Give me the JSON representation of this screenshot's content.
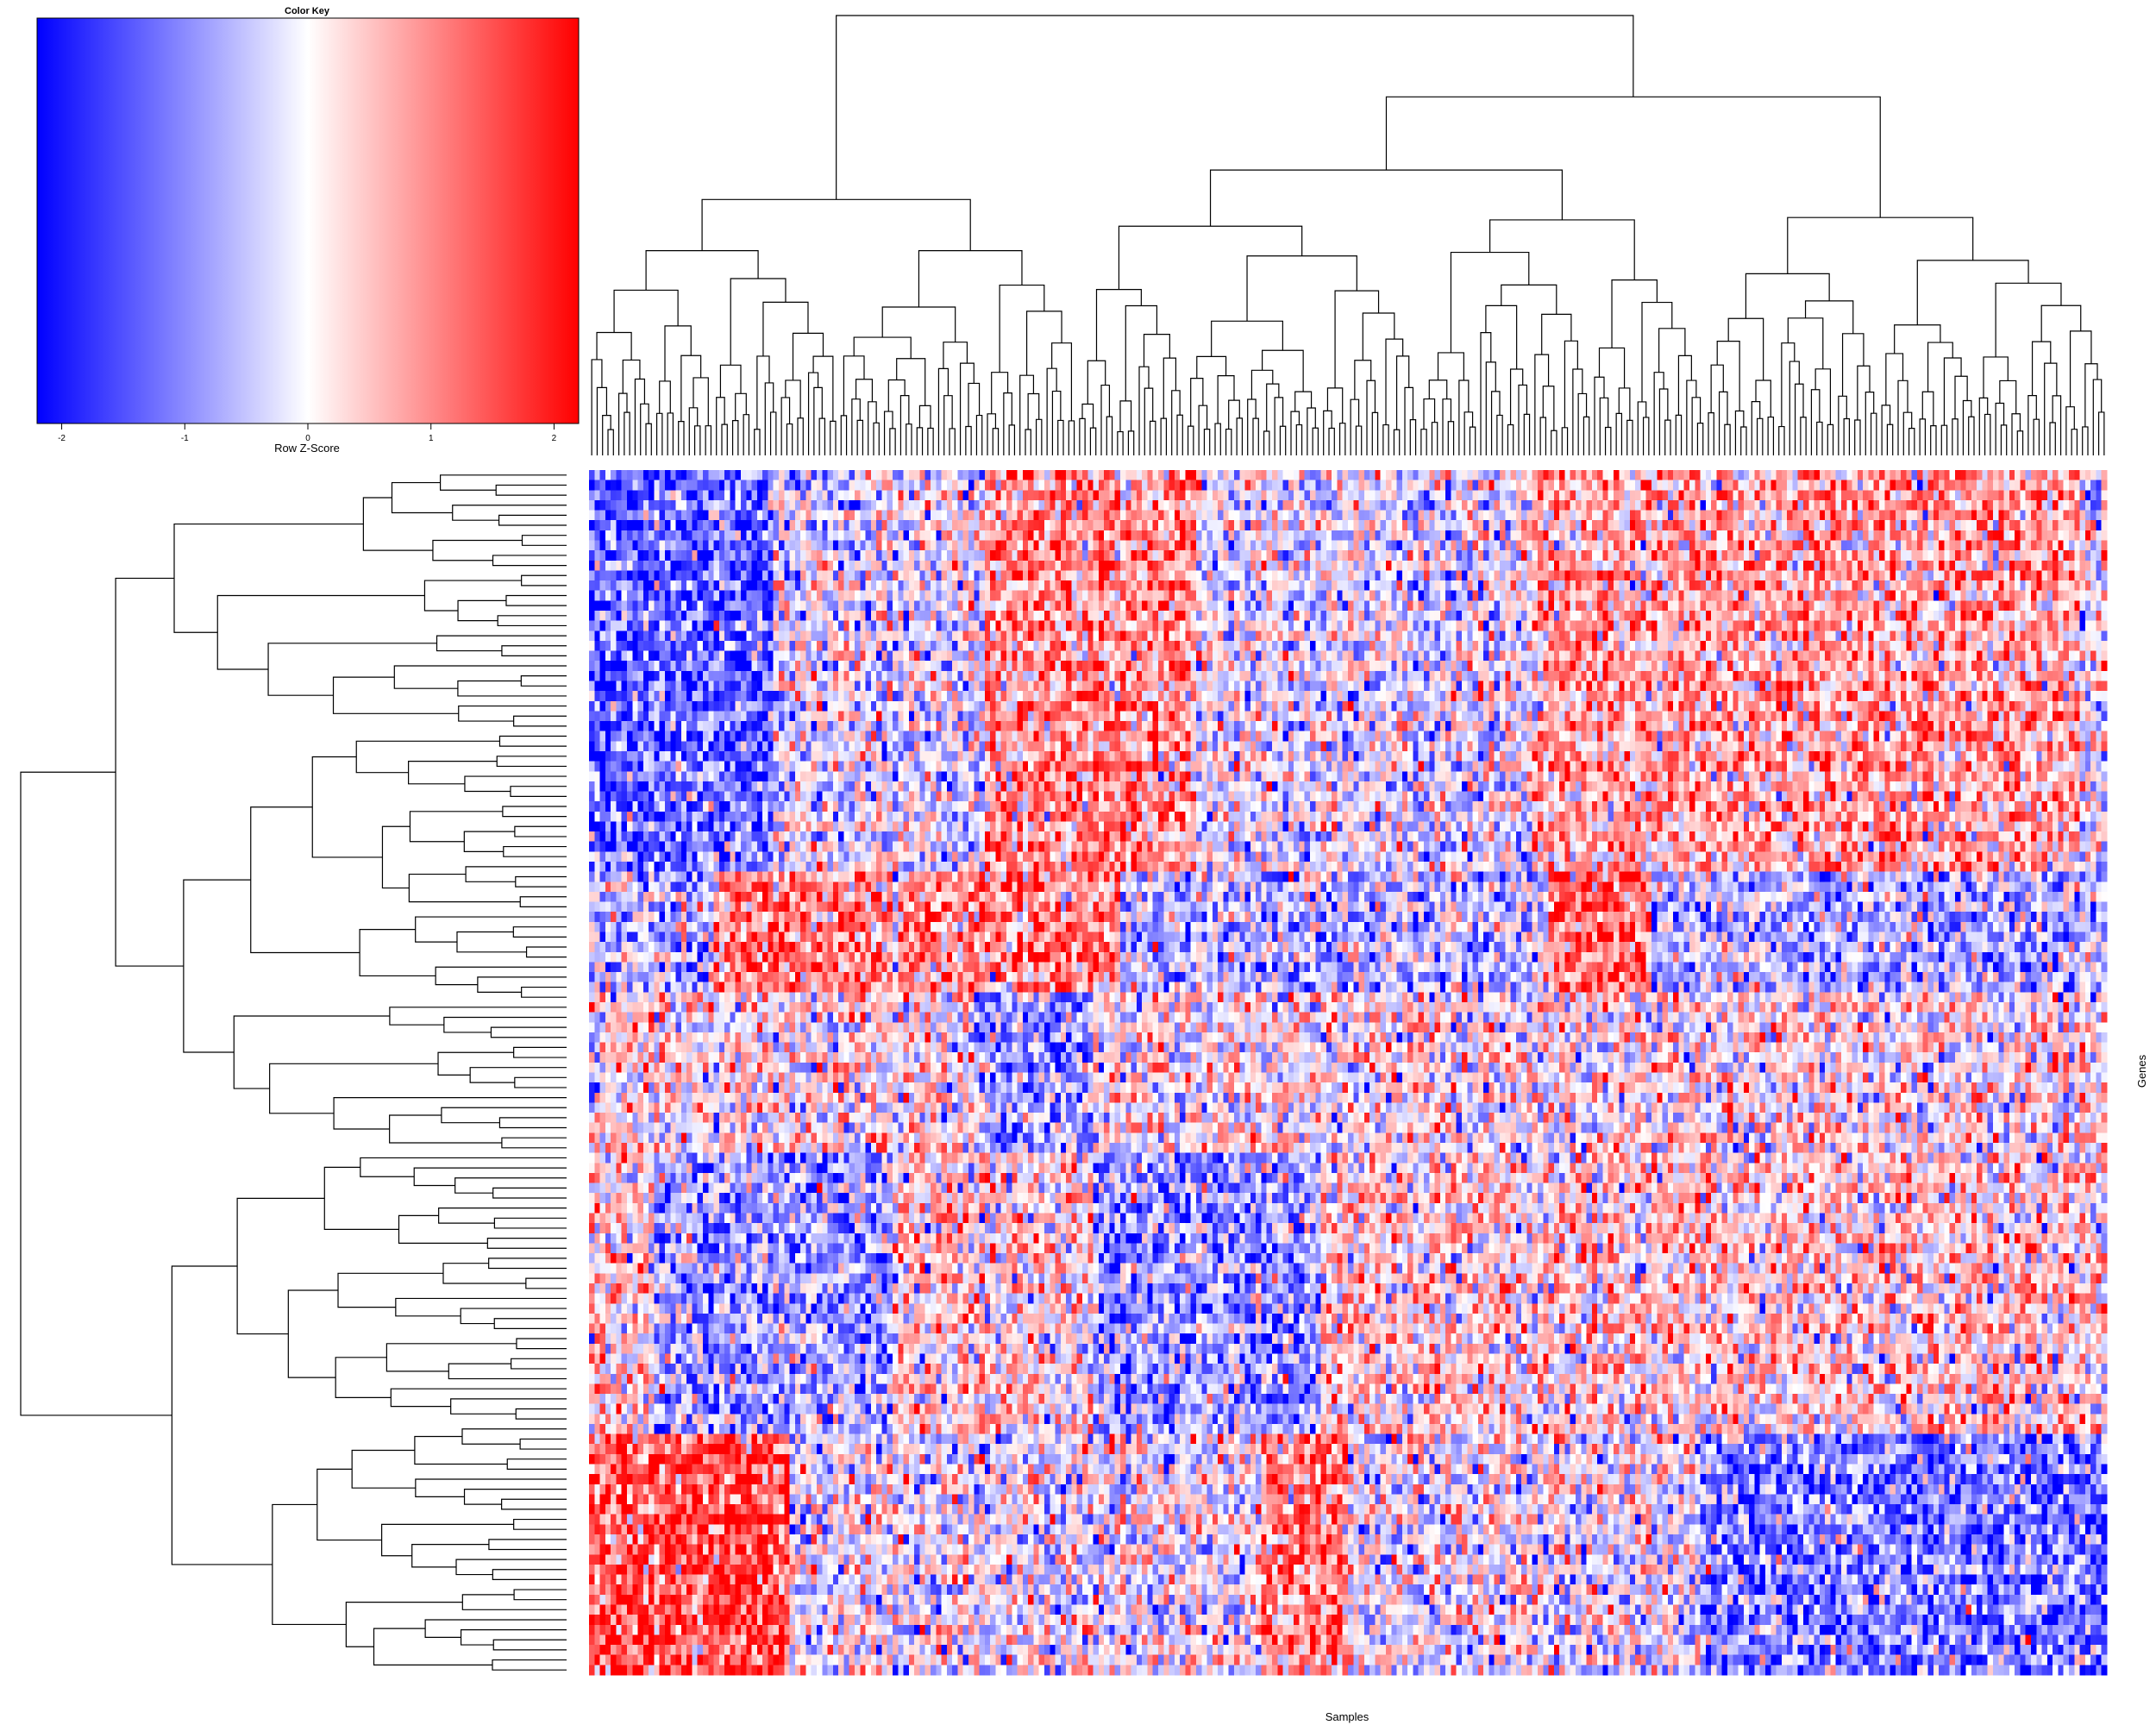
{
  "chart_data": {
    "type": "heatmap",
    "subtype": "clustered heatmap with row and column dendrograms",
    "xlabel": "Samples",
    "ylabel": "Genes",
    "color_key": {
      "title": "Color Key",
      "label": "Row Z-Score",
      "range": [
        -2.2,
        2.2
      ],
      "ticks": [
        "-2",
        "-1",
        "0",
        "1",
        "2"
      ],
      "tick_values": [
        -2,
        -1,
        0,
        1,
        2
      ]
    },
    "colors": {
      "low": "#0000ff",
      "mid": "#ffffff",
      "high": "#ff0000",
      "line": "#000000"
    },
    "n_rows": 120,
    "n_cols": 280,
    "dendrogram_leaves_rows": 120,
    "dendrogram_leaves_cols": 280,
    "cluster_bands": [
      {
        "rows": [
          0,
          40
        ],
        "pattern": "left columns low, right columns high"
      },
      {
        "rows": [
          40,
          52
        ],
        "pattern": "mixed with high blocks mid-left and center"
      },
      {
        "rows": [
          52,
          68
        ],
        "pattern": "mixed"
      },
      {
        "rows": [
          68,
          96
        ],
        "pattern": "center low blocks, mixed"
      },
      {
        "rows": [
          96,
          120
        ],
        "pattern": "left columns high, right columns low"
      }
    ]
  }
}
